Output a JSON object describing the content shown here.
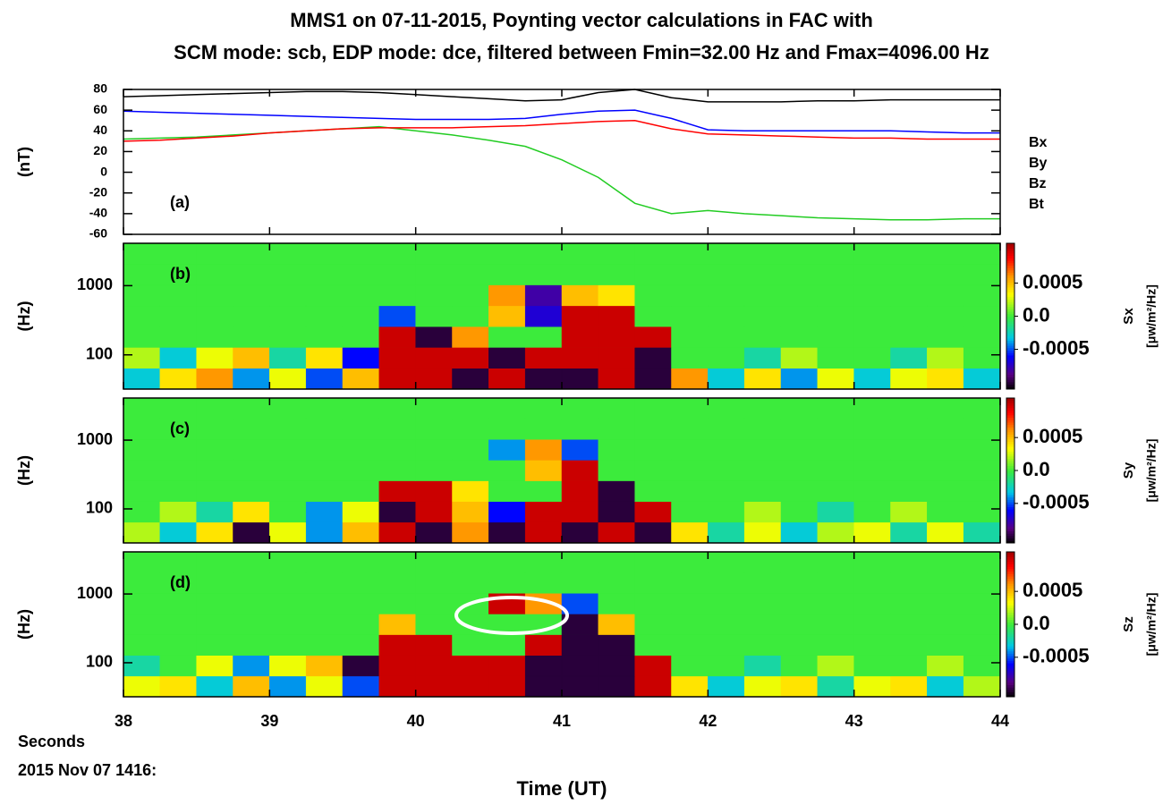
{
  "title": [
    "MMS1 on 07-11-2015, Poynting vector calculations in FAC with",
    "SCM mode: scb, EDP mode: dce, filtered between Fmin=32.00 Hz and Fmax=4096.00 Hz"
  ],
  "chart_data": [
    {
      "type": "line",
      "annotation": "(a)",
      "ylabel": "(nT)",
      "xlim": [
        38,
        44
      ],
      "xticks": [
        38,
        39,
        40,
        41,
        42,
        43,
        44
      ],
      "ylim": [
        -60,
        80
      ],
      "yticks": [
        -60,
        -40,
        -20,
        0,
        20,
        40,
        60,
        80
      ],
      "x": [
        38,
        38.25,
        38.5,
        38.75,
        39,
        39.25,
        39.5,
        39.75,
        40,
        40.25,
        40.5,
        40.75,
        41,
        41.25,
        41.5,
        41.75,
        42,
        42.25,
        42.5,
        42.75,
        43,
        43.25,
        43.5,
        43.75,
        44
      ],
      "series": [
        {
          "name": "Bx",
          "color": "#0000ff",
          "values": [
            59,
            58,
            57,
            56,
            55,
            54,
            53,
            52,
            51,
            51,
            51,
            52,
            56,
            59,
            60,
            52,
            41,
            40,
            40,
            40,
            40,
            40,
            39,
            38,
            38
          ]
        },
        {
          "name": "By",
          "color": "#22cc22",
          "values": [
            32,
            33,
            34,
            36,
            38,
            40,
            42,
            44,
            40,
            36,
            31,
            25,
            12,
            -5,
            -30,
            -40,
            -37,
            -40,
            -42,
            -44,
            -45,
            -46,
            -46,
            -45,
            -45
          ]
        },
        {
          "name": "Bz",
          "color": "#ff0000",
          "values": [
            30,
            31,
            33,
            35,
            38,
            40,
            42,
            43,
            43,
            43,
            44,
            45,
            47,
            49,
            50,
            42,
            37,
            36,
            35,
            34,
            33,
            33,
            32,
            32,
            32
          ]
        },
        {
          "name": "Bt",
          "color": "#000000",
          "values": [
            73,
            74,
            75,
            76,
            77,
            78,
            78,
            77,
            75,
            73,
            71,
            69,
            70,
            77,
            80,
            72,
            68,
            68,
            68,
            69,
            69,
            70,
            70,
            70,
            70
          ]
        }
      ]
    },
    {
      "type": "heatmap",
      "annotation": "(b)",
      "ylabel": "(Hz)",
      "log_y": true,
      "xlim": [
        38,
        44
      ],
      "xticks": [
        38,
        39,
        40,
        41,
        42,
        43,
        44
      ],
      "ylim": [
        32,
        4096
      ],
      "yticks": [
        100,
        1000
      ],
      "zlim": [
        -0.0011,
        0.0011
      ],
      "zticks": [
        -0.0005,
        {
          "value": 0,
          "label": "0.0"
        },
        0.0005
      ],
      "zlabel": "Sx",
      "zunits": "[μw/m²/Hz]",
      "xbins": [
        38,
        38.25,
        38.5,
        38.75,
        39,
        39.25,
        39.5,
        39.75,
        40,
        40.25,
        40.5,
        40.75,
        41,
        41.25,
        41.5,
        41.75,
        42,
        42.25,
        42.5,
        42.75,
        43,
        43.25,
        43.5,
        43.75,
        44
      ],
      "ybins": [
        32,
        64,
        128,
        256,
        512,
        1024,
        2048,
        4096
      ],
      "values": [
        [
          -0.0003,
          0.0004,
          0.0006,
          -0.0004,
          0.0003,
          -0.0005,
          0.0005,
          0.001,
          0.001,
          -0.001,
          0.001,
          -0.001,
          -0.001,
          0.001,
          -0.001,
          0.0006,
          -0.0003,
          0.0004,
          -0.0004,
          0.0003,
          -0.0003,
          0.0003,
          0.0004,
          -0.0003
        ],
        [
          0.0002,
          -0.0003,
          0.0003,
          0.0005,
          -0.0002,
          0.0004,
          -0.0006,
          0.001,
          0.001,
          0.001,
          -0.001,
          0.001,
          0.001,
          0.001,
          -0.001,
          0,
          0,
          -0.0002,
          0.0002,
          0,
          0,
          -0.0002,
          0.0002,
          0
        ],
        [
          0,
          0,
          0,
          0,
          0,
          0,
          0,
          0.001,
          -0.001,
          0.0006,
          0,
          0,
          0.001,
          0.001,
          0.001,
          0,
          0,
          0,
          0,
          0,
          0,
          0,
          0,
          0
        ],
        [
          0,
          0,
          0,
          0,
          0,
          0,
          0,
          -0.0005,
          0,
          0,
          0.0005,
          -0.0007,
          0.001,
          0.001,
          0,
          0,
          0,
          0,
          0,
          0,
          0,
          0,
          0,
          0
        ],
        [
          0,
          0,
          0,
          0,
          0,
          0,
          0,
          0,
          0,
          0,
          0.0006,
          -0.0008,
          0.0005,
          0.0004,
          0,
          0,
          0,
          0,
          0,
          0,
          0,
          0,
          0,
          0
        ],
        [
          0,
          0,
          0,
          0,
          0,
          0,
          0,
          0,
          0,
          0,
          0,
          0,
          0,
          0,
          0,
          0,
          0,
          0,
          0,
          0,
          0,
          0,
          0,
          0
        ],
        [
          0,
          0,
          0,
          0,
          0,
          0,
          0,
          0,
          0,
          0,
          0,
          0,
          0,
          0,
          0,
          0,
          0,
          0,
          0,
          0,
          0,
          0,
          0,
          0
        ]
      ]
    },
    {
      "type": "heatmap",
      "annotation": "(c)",
      "ylabel": "(Hz)",
      "log_y": true,
      "xlim": [
        38,
        44
      ],
      "xticks": [
        38,
        39,
        40,
        41,
        42,
        43,
        44
      ],
      "ylim": [
        32,
        4096
      ],
      "yticks": [
        100,
        1000
      ],
      "zlim": [
        -0.0011,
        0.0011
      ],
      "zticks": [
        -0.0005,
        {
          "value": 0,
          "label": "0.0"
        },
        0.0005
      ],
      "zlabel": "Sy",
      "zunits": "[μw/m²/Hz]",
      "xbins": [
        38,
        38.25,
        38.5,
        38.75,
        39,
        39.25,
        39.5,
        39.75,
        40,
        40.25,
        40.5,
        40.75,
        41,
        41.25,
        41.5,
        41.75,
        42,
        42.25,
        42.5,
        42.75,
        43,
        43.25,
        43.5,
        43.75,
        44
      ],
      "ybins": [
        32,
        64,
        128,
        256,
        512,
        1024,
        2048,
        4096
      ],
      "values": [
        [
          0.0002,
          -0.0003,
          0.0004,
          -0.001,
          0.0003,
          -0.0004,
          0.0005,
          0.001,
          -0.001,
          0.0006,
          -0.001,
          0.001,
          -0.001,
          0.001,
          -0.001,
          0.0004,
          -0.0002,
          0.0003,
          -0.0003,
          0.0002,
          0.0003,
          -0.0002,
          0.0003,
          -0.0002
        ],
        [
          0,
          0.0002,
          -0.0002,
          0.0004,
          0,
          -0.0004,
          0.0003,
          -0.001,
          0.001,
          0.0005,
          -0.0006,
          0.001,
          0.001,
          -0.001,
          0.001,
          0,
          0,
          0.0002,
          0,
          -0.0002,
          0,
          0.0002,
          0,
          0
        ],
        [
          0,
          0,
          0,
          0,
          0,
          0,
          0,
          0.001,
          0.001,
          0.0004,
          0,
          0,
          0.001,
          -0.001,
          0,
          0,
          0,
          0,
          0,
          0,
          0,
          0,
          0,
          0
        ],
        [
          0,
          0,
          0,
          0,
          0,
          0,
          0,
          0,
          0,
          0,
          0,
          0.0005,
          0.001,
          0,
          0,
          0,
          0,
          0,
          0,
          0,
          0,
          0,
          0,
          0
        ],
        [
          0,
          0,
          0,
          0,
          0,
          0,
          0,
          0,
          0,
          0,
          -0.0004,
          0.0006,
          -0.0005,
          0,
          0,
          0,
          0,
          0,
          0,
          0,
          0,
          0,
          0,
          0
        ],
        [
          0,
          0,
          0,
          0,
          0,
          0,
          0,
          0,
          0,
          0,
          0,
          0,
          0,
          0,
          0,
          0,
          0,
          0,
          0,
          0,
          0,
          0,
          0,
          0
        ],
        [
          0,
          0,
          0,
          0,
          0,
          0,
          0,
          0,
          0,
          0,
          0,
          0,
          0,
          0,
          0,
          0,
          0,
          0,
          0,
          0,
          0,
          0,
          0,
          0
        ]
      ]
    },
    {
      "type": "heatmap",
      "annotation": "(d)",
      "ylabel": "(Hz)",
      "log_y": true,
      "xlim": [
        38,
        44
      ],
      "xticks": [
        38,
        39,
        40,
        41,
        42,
        43,
        44
      ],
      "xlabel": "Time (UT)",
      "xunit_label": "Seconds",
      "date_label": "2015 Nov 07 1416:",
      "ylim": [
        32,
        4096
      ],
      "yticks": [
        100,
        1000
      ],
      "zlim": [
        -0.0011,
        0.0011
      ],
      "zticks": [
        -0.0005,
        {
          "value": 0,
          "label": "0.0"
        },
        0.0005
      ],
      "zlabel": "Sz",
      "zunits": "[μw/m²/Hz]",
      "xbins": [
        38,
        38.25,
        38.5,
        38.75,
        39,
        39.25,
        39.5,
        39.75,
        40,
        40.25,
        40.5,
        40.75,
        41,
        41.25,
        41.5,
        41.75,
        42,
        42.25,
        42.5,
        42.75,
        43,
        43.25,
        43.5,
        43.75,
        44
      ],
      "ybins": [
        32,
        64,
        128,
        256,
        512,
        1024,
        2048,
        4096
      ],
      "values": [
        [
          0.0003,
          0.0004,
          -0.0003,
          0.0005,
          -0.0004,
          0.0003,
          -0.0005,
          0.001,
          0.001,
          0.001,
          0.001,
          -0.001,
          -0.001,
          -0.001,
          0.001,
          0.0004,
          -0.0003,
          0.0003,
          0.0004,
          -0.0002,
          0.0003,
          0.0004,
          -0.0003,
          0.0002
        ],
        [
          -0.0002,
          0,
          0.0003,
          -0.0004,
          0.0003,
          0.0005,
          -0.001,
          0.001,
          0.001,
          0.001,
          0.001,
          -0.001,
          -0.001,
          -0.001,
          0.001,
          0,
          0,
          -0.0002,
          0,
          0.0002,
          0,
          0,
          0.0002,
          0
        ],
        [
          0,
          0,
          0,
          0,
          0,
          0,
          0,
          0.001,
          0.001,
          0,
          0,
          0.001,
          -0.001,
          -0.001,
          0,
          0,
          0,
          0,
          0,
          0,
          0,
          0,
          0,
          0
        ],
        [
          0,
          0,
          0,
          0,
          0,
          0,
          0,
          0.0005,
          0,
          0,
          0,
          0,
          -0.001,
          0.0005,
          0,
          0,
          0,
          0,
          0,
          0,
          0,
          0,
          0,
          0
        ],
        [
          0,
          0,
          0,
          0,
          0,
          0,
          0,
          0,
          0,
          0,
          0.001,
          0.0006,
          -0.0005,
          0,
          0,
          0,
          0,
          0,
          0,
          0,
          0,
          0,
          0,
          0
        ],
        [
          0,
          0,
          0,
          0,
          0,
          0,
          0,
          0,
          0,
          0,
          0,
          0,
          0,
          0,
          0,
          0,
          0,
          0,
          0,
          0,
          0,
          0,
          0,
          0
        ],
        [
          0,
          0,
          0,
          0,
          0,
          0,
          0,
          0,
          0,
          0,
          0,
          0,
          0,
          0,
          0,
          0,
          0,
          0,
          0,
          0,
          0,
          0,
          0,
          0
        ]
      ]
    }
  ]
}
